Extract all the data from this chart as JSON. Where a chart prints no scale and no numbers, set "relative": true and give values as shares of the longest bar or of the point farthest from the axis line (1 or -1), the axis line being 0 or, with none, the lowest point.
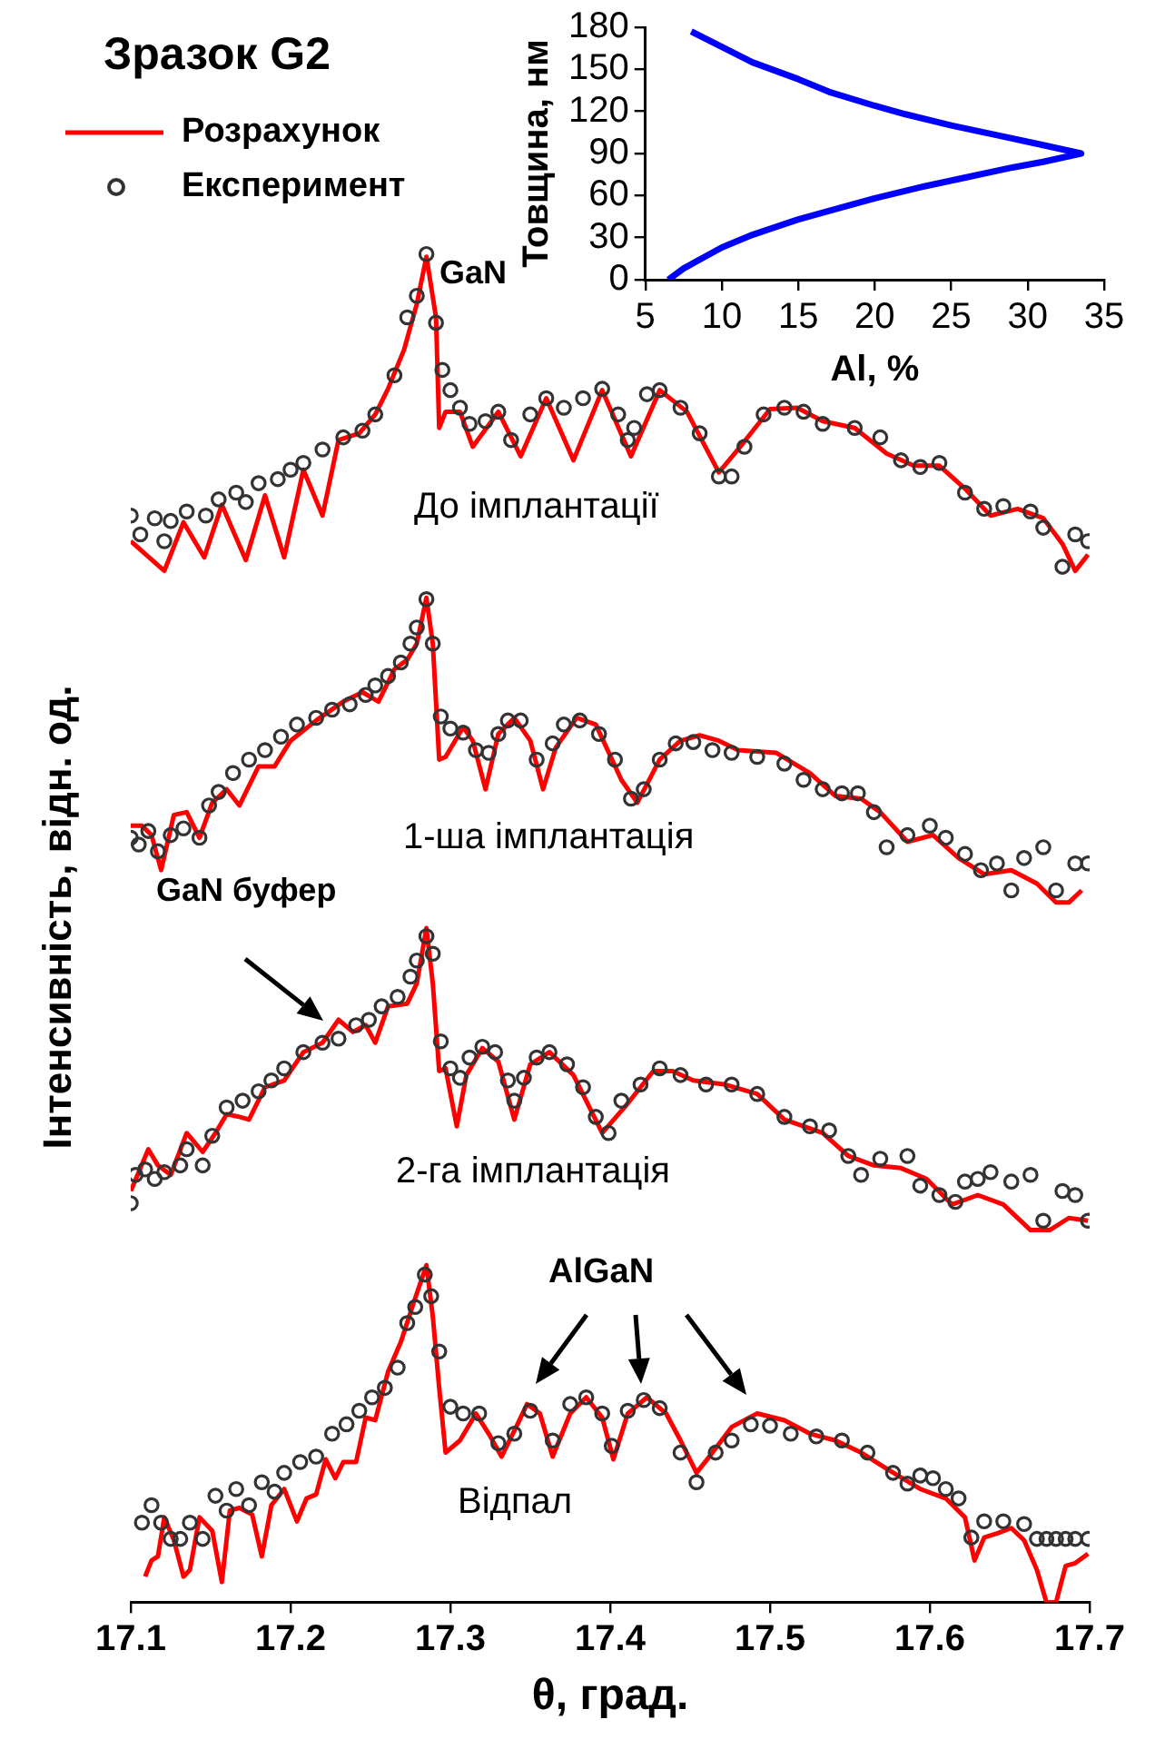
{
  "chart_data": [
    {
      "type": "line",
      "title": "Зразок G2",
      "xlabel": "θ, град.",
      "ylabel": "Інтенсивність, відн. од.",
      "relative": true,
      "xlim": [
        17.1,
        17.7
      ],
      "xticks": [
        17.1,
        17.2,
        17.3,
        17.4,
        17.5,
        17.6,
        17.7
      ],
      "grid": false,
      "legend": "top left",
      "annotations": [
        "GaN",
        "GaN буфер",
        "AlGaN",
        "До імплантації",
        "1-ша імплантація",
        "2-га імплантація",
        "Відпал"
      ],
      "series": [
        {
          "name": "Розрахунок",
          "type": "line",
          "color": "#ff0000",
          "marker": "none",
          "x": [
            17.1,
            17.121,
            17.133,
            17.146,
            17.157,
            17.172,
            17.184,
            17.196,
            17.208,
            17.22,
            17.23,
            17.243,
            17.253,
            17.261,
            17.271,
            17.279,
            17.285,
            17.291,
            17.293,
            17.297,
            17.306,
            17.314,
            17.33,
            17.344,
            17.36,
            17.377,
            17.395,
            17.413,
            17.431,
            17.448,
            17.468,
            17.48,
            17.5,
            17.517,
            17.533,
            17.553,
            17.573,
            17.59,
            17.606,
            17.622,
            17.638,
            17.655,
            17.671,
            17.683,
            17.691,
            17.699
          ],
          "values": [
            0.787,
            0.765,
            0.801,
            0.775,
            0.814,
            0.773,
            0.821,
            0.775,
            0.84,
            0.806,
            0.862,
            0.867,
            0.881,
            0.9,
            0.929,
            0.963,
            0.998,
            0.953,
            0.871,
            0.883,
            0.883,
            0.857,
            0.883,
            0.85,
            0.893,
            0.847,
            0.899,
            0.85,
            0.899,
            0.883,
            0.838,
            0.855,
            0.885,
            0.886,
            0.876,
            0.871,
            0.852,
            0.843,
            0.843,
            0.826,
            0.806,
            0.811,
            0.804,
            0.785,
            0.765,
            0.777
          ]
        },
        {
          "name": "Експеримент",
          "type": "scatter",
          "color": "#333333",
          "marker": "circle",
          "x": [
            17.1,
            17.106,
            17.115,
            17.121,
            17.125,
            17.135,
            17.147,
            17.155,
            17.166,
            17.172,
            17.18,
            17.192,
            17.2,
            17.208,
            17.22,
            17.233,
            17.245,
            17.253,
            17.265,
            17.273,
            17.279,
            17.285,
            17.291,
            17.295,
            17.3,
            17.306,
            17.312,
            17.322,
            17.33,
            17.338,
            17.35,
            17.36,
            17.371,
            17.383,
            17.395,
            17.405,
            17.411,
            17.415,
            17.423,
            17.431,
            17.444,
            17.456,
            17.468,
            17.476,
            17.484,
            17.496,
            17.509,
            17.521,
            17.533,
            17.553,
            17.569,
            17.582,
            17.594,
            17.606,
            17.622,
            17.634,
            17.646,
            17.663,
            17.671,
            17.683,
            17.691,
            17.699
          ],
          "values": [
            0.806,
            0.792,
            0.804,
            0.787,
            0.802,
            0.809,
            0.806,
            0.818,
            0.823,
            0.816,
            0.83,
            0.833,
            0.84,
            0.845,
            0.855,
            0.864,
            0.869,
            0.881,
            0.91,
            0.953,
            0.969,
            1,
            0.949,
            0.914,
            0.899,
            0.886,
            0.874,
            0.876,
            0.883,
            0.862,
            0.881,
            0.893,
            0.886,
            0.893,
            0.9,
            0.881,
            0.862,
            0.871,
            0.896,
            0.899,
            0.886,
            0.867,
            0.835,
            0.835,
            0.857,
            0.881,
            0.886,
            0.883,
            0.874,
            0.871,
            0.864,
            0.847,
            0.842,
            0.845,
            0.823,
            0.811,
            0.813,
            0.809,
            0.797,
            0.768,
            0.792,
            0.787
          ]
        },
        {
          "type": "line",
          "color": "#ff0000",
          "marker": "none",
          "x": [
            17.1,
            17.107,
            17.113,
            17.119,
            17.127,
            17.135,
            17.143,
            17.151,
            17.16,
            17.168,
            17.18,
            17.19,
            17.2,
            17.216,
            17.233,
            17.245,
            17.255,
            17.265,
            17.273,
            17.279,
            17.285,
            17.289,
            17.293,
            17.297,
            17.308,
            17.314,
            17.322,
            17.33,
            17.34,
            17.35,
            17.358,
            17.366,
            17.379,
            17.391,
            17.407,
            17.417,
            17.431,
            17.444,
            17.456,
            17.468,
            17.48,
            17.504,
            17.525,
            17.541,
            17.557,
            17.569,
            17.586,
            17.602,
            17.618,
            17.634,
            17.651,
            17.667,
            17.679,
            17.687,
            17.695
          ],
          "values": [
            0.576,
            0.576,
            0.569,
            0.543,
            0.584,
            0.586,
            0.567,
            0.593,
            0.603,
            0.591,
            0.62,
            0.62,
            0.639,
            0.654,
            0.668,
            0.675,
            0.668,
            0.692,
            0.699,
            0.711,
            0.745,
            0.711,
            0.625,
            0.627,
            0.649,
            0.639,
            0.603,
            0.644,
            0.656,
            0.639,
            0.603,
            0.634,
            0.656,
            0.651,
            0.61,
            0.593,
            0.625,
            0.639,
            0.643,
            0.639,
            0.632,
            0.63,
            0.615,
            0.598,
            0.596,
            0.586,
            0.564,
            0.569,
            0.552,
            0.54,
            0.543,
            0.533,
            0.519,
            0.519,
            0.528
          ]
        },
        {
          "type": "scatter",
          "color": "#333333",
          "marker": "circle",
          "x": [
            17.1,
            17.105,
            17.111,
            17.117,
            17.125,
            17.133,
            17.143,
            17.149,
            17.155,
            17.164,
            17.174,
            17.184,
            17.194,
            17.204,
            17.216,
            17.226,
            17.237,
            17.247,
            17.253,
            17.261,
            17.269,
            17.275,
            17.279,
            17.285,
            17.289,
            17.294,
            17.3,
            17.308,
            17.316,
            17.324,
            17.33,
            17.336,
            17.344,
            17.354,
            17.364,
            17.371,
            17.381,
            17.393,
            17.403,
            17.413,
            17.421,
            17.431,
            17.441,
            17.452,
            17.464,
            17.476,
            17.492,
            17.509,
            17.521,
            17.533,
            17.545,
            17.555,
            17.565,
            17.573,
            17.586,
            17.6,
            17.61,
            17.622,
            17.632,
            17.642,
            17.651,
            17.659,
            17.671,
            17.679,
            17.691,
            17.699
          ],
          "values": [
            0.567,
            0.562,
            0.572,
            0.557,
            0.569,
            0.574,
            0.567,
            0.591,
            0.601,
            0.615,
            0.625,
            0.632,
            0.642,
            0.651,
            0.656,
            0.662,
            0.666,
            0.673,
            0.68,
            0.687,
            0.697,
            0.711,
            0.723,
            0.744,
            0.711,
            0.657,
            0.648,
            0.645,
            0.632,
            0.63,
            0.644,
            0.654,
            0.654,
            0.625,
            0.637,
            0.651,
            0.654,
            0.644,
            0.625,
            0.596,
            0.603,
            0.625,
            0.637,
            0.638,
            0.632,
            0.63,
            0.627,
            0.622,
            0.61,
            0.603,
            0.6,
            0.6,
            0.586,
            0.56,
            0.569,
            0.576,
            0.567,
            0.555,
            0.543,
            0.548,
            0.528,
            0.552,
            0.56,
            0.528,
            0.548,
            0.548
          ]
        },
        {
          "type": "line",
          "color": "#ff0000",
          "marker": "none",
          "x": [
            17.1,
            17.105,
            17.111,
            17.117,
            17.125,
            17.135,
            17.145,
            17.153,
            17.16,
            17.168,
            17.174,
            17.184,
            17.196,
            17.208,
            17.22,
            17.23,
            17.239,
            17.247,
            17.253,
            17.261,
            17.273,
            17.279,
            17.285,
            17.289,
            17.293,
            17.297,
            17.304,
            17.31,
            17.32,
            17.33,
            17.34,
            17.35,
            17.362,
            17.377,
            17.395,
            17.411,
            17.427,
            17.439,
            17.452,
            17.472,
            17.492,
            17.509,
            17.533,
            17.549,
            17.565,
            17.582,
            17.598,
            17.614,
            17.63,
            17.646,
            17.663,
            17.675,
            17.687,
            17.699
          ],
          "values": [
            0.305,
            0.319,
            0.336,
            0.324,
            0.317,
            0.348,
            0.334,
            0.348,
            0.362,
            0.36,
            0.358,
            0.382,
            0.387,
            0.408,
            0.415,
            0.432,
            0.423,
            0.428,
            0.415,
            0.442,
            0.444,
            0.459,
            0.5,
            0.459,
            0.394,
            0.396,
            0.353,
            0.391,
            0.411,
            0.401,
            0.358,
            0.399,
            0.408,
            0.391,
            0.348,
            0.37,
            0.394,
            0.394,
            0.387,
            0.384,
            0.377,
            0.358,
            0.348,
            0.331,
            0.324,
            0.322,
            0.314,
            0.295,
            0.302,
            0.295,
            0.276,
            0.276,
            0.285,
            0.283
          ]
        },
        {
          "type": "scatter",
          "color": "#333333",
          "marker": "circle",
          "x": [
            17.1,
            17.103,
            17.109,
            17.115,
            17.121,
            17.131,
            17.135,
            17.145,
            17.151,
            17.16,
            17.17,
            17.18,
            17.188,
            17.196,
            17.208,
            17.22,
            17.23,
            17.241,
            17.249,
            17.257,
            17.267,
            17.275,
            17.279,
            17.285,
            17.289,
            17.294,
            17.3,
            17.306,
            17.312,
            17.32,
            17.328,
            17.336,
            17.34,
            17.346,
            17.354,
            17.362,
            17.373,
            17.383,
            17.391,
            17.399,
            17.407,
            17.419,
            17.431,
            17.444,
            17.46,
            17.476,
            17.492,
            17.509,
            17.525,
            17.537,
            17.549,
            17.557,
            17.569,
            17.586,
            17.594,
            17.606,
            17.616,
            17.622,
            17.63,
            17.638,
            17.651,
            17.663,
            17.671,
            17.683,
            17.691,
            17.699
          ],
          "values": [
            0.296,
            0.317,
            0.321,
            0.314,
            0.319,
            0.324,
            0.336,
            0.324,
            0.346,
            0.367,
            0.372,
            0.379,
            0.387,
            0.396,
            0.408,
            0.415,
            0.418,
            0.428,
            0.432,
            0.442,
            0.449,
            0.464,
            0.476,
            0.494,
            0.481,
            0.416,
            0.396,
            0.389,
            0.404,
            0.412,
            0.408,
            0.387,
            0.372,
            0.389,
            0.404,
            0.408,
            0.399,
            0.382,
            0.36,
            0.348,
            0.372,
            0.384,
            0.396,
            0.391,
            0.384,
            0.384,
            0.377,
            0.36,
            0.353,
            0.35,
            0.331,
            0.317,
            0.329,
            0.331,
            0.309,
            0.302,
            0.297,
            0.312,
            0.314,
            0.319,
            0.312,
            0.317,
            0.283,
            0.305,
            0.302,
            0.283
          ]
        },
        {
          "type": "line",
          "color": "#ff0000",
          "marker": "none",
          "x": [
            17.109,
            17.113,
            17.117,
            17.121,
            17.127,
            17.133,
            17.137,
            17.143,
            17.151,
            17.157,
            17.162,
            17.168,
            17.176,
            17.182,
            17.188,
            17.196,
            17.204,
            17.21,
            17.216,
            17.222,
            17.228,
            17.233,
            17.241,
            17.247,
            17.253,
            17.261,
            17.269,
            17.277,
            17.285,
            17.289,
            17.293,
            17.297,
            17.306,
            17.316,
            17.324,
            17.332,
            17.342,
            17.348,
            17.356,
            17.364,
            17.375,
            17.385,
            17.395,
            17.402,
            17.411,
            17.423,
            17.435,
            17.444,
            17.454,
            17.464,
            17.476,
            17.492,
            17.509,
            17.525,
            17.541,
            17.557,
            17.573,
            17.594,
            17.61,
            17.622,
            17.628,
            17.634,
            17.642,
            17.651,
            17.659,
            17.667,
            17.673,
            17.679,
            17.685,
            17.691,
            17.699
          ],
          "values": [
            0.019,
            0.031,
            0.034,
            0.063,
            0.046,
            0.019,
            0.024,
            0.063,
            0.053,
            0.015,
            0.068,
            0.07,
            0.065,
            0.034,
            0.072,
            0.084,
            0.06,
            0.077,
            0.08,
            0.106,
            0.092,
            0.104,
            0.104,
            0.137,
            0.135,
            0.171,
            0.193,
            0.222,
            0.25,
            0.212,
            0.159,
            0.111,
            0.12,
            0.14,
            0.125,
            0.108,
            0.132,
            0.147,
            0.14,
            0.108,
            0.14,
            0.152,
            0.137,
            0.106,
            0.14,
            0.152,
            0.14,
            0.12,
            0.096,
            0.111,
            0.13,
            0.14,
            0.135,
            0.125,
            0.12,
            0.111,
            0.099,
            0.084,
            0.077,
            0.063,
            0.031,
            0.048,
            0.051,
            0.055,
            0.046,
            0.024,
            0,
            0,
            0.027,
            0.029,
            0.036
          ]
        },
        {
          "type": "scatter",
          "color": "#333333",
          "marker": "circle",
          "x": [
            17.107,
            17.113,
            17.119,
            17.125,
            17.131,
            17.137,
            17.145,
            17.153,
            17.16,
            17.166,
            17.174,
            17.182,
            17.19,
            17.196,
            17.206,
            17.216,
            17.226,
            17.235,
            17.243,
            17.251,
            17.259,
            17.267,
            17.273,
            17.278,
            17.284,
            17.288,
            17.293,
            17.3,
            17.308,
            17.318,
            17.33,
            17.34,
            17.35,
            17.364,
            17.375,
            17.385,
            17.395,
            17.401,
            17.411,
            17.421,
            17.431,
            17.444,
            17.454,
            17.466,
            17.476,
            17.488,
            17.5,
            17.513,
            17.529,
            17.545,
            17.561,
            17.577,
            17.586,
            17.594,
            17.602,
            17.61,
            17.618,
            17.626,
            17.634,
            17.646,
            17.659,
            17.667,
            17.673,
            17.679,
            17.685,
            17.691,
            17.699
          ],
          "values": [
            0.059,
            0.072,
            0.059,
            0.047,
            0.047,
            0.059,
            0.047,
            0.079,
            0.068,
            0.084,
            0.072,
            0.089,
            0.082,
            0.096,
            0.104,
            0.108,
            0.125,
            0.132,
            0.142,
            0.152,
            0.159,
            0.174,
            0.207,
            0.219,
            0.243,
            0.227,
            0.186,
            0.145,
            0.14,
            0.14,
            0.118,
            0.125,
            0.142,
            0.12,
            0.147,
            0.152,
            0.14,
            0.116,
            0.142,
            0.15,
            0.144,
            0.111,
            0.089,
            0.111,
            0.12,
            0.132,
            0.131,
            0.125,
            0.123,
            0.12,
            0.111,
            0.096,
            0.088,
            0.094,
            0.092,
            0.084,
            0.077,
            0.048,
            0.06,
            0.06,
            0.058,
            0.047,
            0.047,
            0.047,
            0.047,
            0.047,
            0.047
          ]
        }
      ]
    },
    {
      "type": "line",
      "xlabel": "Al, %",
      "ylabel": "Товщина, нм",
      "xlim": [
        5,
        35
      ],
      "xticks": [
        5,
        10,
        15,
        20,
        25,
        30,
        35
      ],
      "ylim": [
        0,
        180
      ],
      "yticks": [
        0,
        30,
        60,
        90,
        120,
        150,
        180
      ],
      "grid": false,
      "series": [
        {
          "color": "#0000ff",
          "marker": "none",
          "x": [
            6.5,
            7.5,
            9,
            10,
            12,
            15,
            18,
            20,
            23,
            26,
            29,
            31,
            33.5,
            31,
            28,
            25,
            22,
            20,
            17,
            15,
            12,
            10,
            8
          ],
          "values": [
            0,
            8,
            17,
            23,
            32,
            43,
            52,
            58,
            66,
            73,
            80,
            84,
            90,
            96,
            103,
            110,
            118,
            124,
            134,
            143,
            155,
            166,
            177
          ]
        }
      ]
    }
  ]
}
